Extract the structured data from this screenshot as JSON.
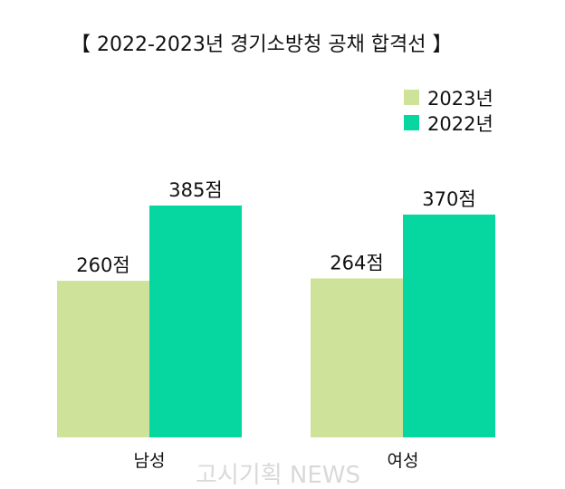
{
  "chart_data": {
    "type": "bar",
    "title": "【 2022-2023년 경기소방청 공채 합격선 】",
    "categories": [
      "남성",
      "여성"
    ],
    "series": [
      {
        "name": "2023년",
        "values": [
          260,
          264
        ],
        "labels": [
          "260점",
          "264점"
        ],
        "color": "#cfe29a"
      },
      {
        "name": "2022년",
        "values": [
          385,
          370
        ],
        "labels": [
          "385점",
          "370점"
        ],
        "color": "#06d6a0"
      }
    ],
    "ylim": [
      0,
      400
    ],
    "grid": false,
    "legend_position": "top-right"
  },
  "watermark": "고시기획 NEWS"
}
